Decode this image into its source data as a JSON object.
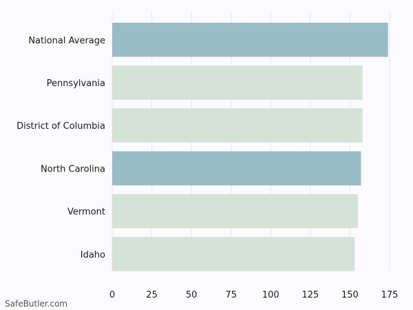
{
  "chart_data": {
    "type": "bar",
    "orientation": "horizontal",
    "categories": [
      "National Average",
      "Pennsylvania",
      "District of Columbia",
      "North Carolina",
      "Vermont",
      "Idaho"
    ],
    "values": [
      174,
      158,
      158,
      157,
      155,
      153
    ],
    "highlighted": [
      true,
      false,
      false,
      true,
      false,
      false
    ],
    "x_ticks": [
      0,
      25,
      50,
      75,
      100,
      125,
      150,
      175
    ],
    "xlim": [
      0,
      175
    ],
    "grid": "vertical",
    "legend": "none",
    "title": "",
    "xlabel": "",
    "ylabel": ""
  },
  "colors": {
    "highlight": "#98bdc6",
    "normal": "#d5e2d8",
    "grid": "#e6e6ec",
    "background": "#fbfbfe"
  },
  "watermark": "SafeButler.com"
}
